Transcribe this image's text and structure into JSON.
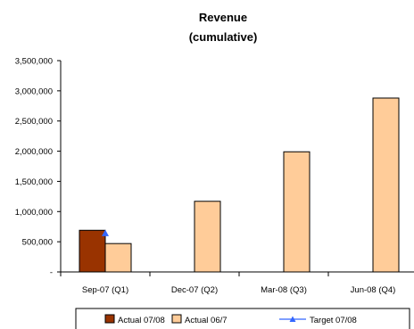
{
  "chart_data": {
    "type": "bar",
    "title": "Revenue",
    "subtitle": "(cumulative)",
    "categories": [
      "Sep-07 (Q1)",
      "Dec-07 (Q2)",
      "Mar-08 (Q3)",
      "Jun-08 (Q4)"
    ],
    "ylim": [
      0,
      3500000
    ],
    "y_tick_values": [
      0,
      500000,
      1000000,
      1500000,
      2000000,
      2500000,
      3000000,
      3500000
    ],
    "y_tick_labels": [
      "-",
      "500,000",
      "1,000,000",
      "1,500,000",
      "2,000,000",
      "2,500,000",
      "3,000,000",
      "3,500,000"
    ],
    "grid": false,
    "legend_position": "bottom",
    "series": [
      {
        "name": "Actual 07/08",
        "kind": "bar",
        "color": "#993300",
        "values": [
          690000,
          null,
          null,
          null
        ]
      },
      {
        "name": "Actual 06/7",
        "kind": "bar",
        "color": "#FFCC99",
        "values": [
          470000,
          1170000,
          1990000,
          2880000
        ]
      },
      {
        "name": "Target 07/08",
        "kind": "line",
        "marker": "triangle",
        "color": "#3366FF",
        "values": [
          640000,
          null,
          null,
          null
        ]
      }
    ]
  }
}
